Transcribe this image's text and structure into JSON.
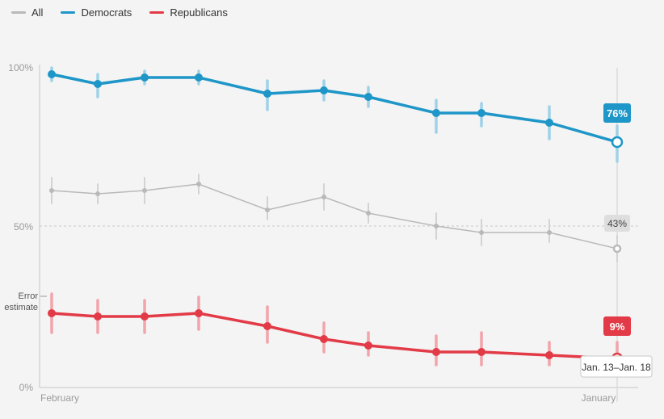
{
  "legend": [
    {
      "label": "All",
      "color": "#b9b9b9"
    },
    {
      "label": "Democrats",
      "color": "#1e96c8"
    },
    {
      "label": "Republicans",
      "color": "#e23b47"
    }
  ],
  "y_ticks": [
    "100%",
    "50%",
    "0%"
  ],
  "x_ticks": [
    "February",
    "January"
  ],
  "error_label": [
    "Error",
    "estimate"
  ],
  "badges": {
    "democrats": "76%",
    "all": "43%",
    "republicans": "9%"
  },
  "date_tooltip": "Jan. 13–Jan. 18",
  "chart_data": {
    "type": "line",
    "title": "",
    "ylim": [
      0,
      100
    ],
    "y_ticks": [
      0,
      50,
      100
    ],
    "x_tick_labels": [
      "February",
      "January"
    ],
    "grid": "dashed line at 50%",
    "legend_position": "top-left",
    "series": [
      {
        "name": "Democrats",
        "color": "#1e96c8",
        "values": [
          97,
          94,
          96,
          96,
          91,
          92,
          90,
          85,
          85,
          82,
          76
        ],
        "error": [
          [
            95,
            99
          ],
          [
            90,
            97
          ],
          [
            94,
            98
          ],
          [
            94,
            98
          ],
          [
            86,
            95
          ],
          [
            89,
            95
          ],
          [
            87,
            93
          ],
          [
            79,
            89
          ],
          [
            81,
            88
          ],
          [
            77,
            87
          ],
          [
            70,
            81
          ]
        ]
      },
      {
        "name": "All",
        "color": "#b9b9b9",
        "values": [
          61,
          60,
          61,
          63,
          55,
          59,
          54,
          50,
          48,
          48,
          43
        ],
        "error": [
          [
            57,
            65
          ],
          [
            57,
            63
          ],
          [
            57,
            65
          ],
          [
            60,
            66
          ],
          [
            52,
            59
          ],
          [
            55,
            63
          ],
          [
            51,
            57
          ],
          [
            46,
            54
          ],
          [
            44,
            52
          ],
          [
            45,
            52
          ],
          [
            39,
            47
          ]
        ]
      },
      {
        "name": "Republicans",
        "color": "#e23b47",
        "values": [
          23,
          22,
          22,
          23,
          19,
          15,
          13,
          11,
          11,
          10,
          9
        ],
        "error": [
          [
            17,
            29
          ],
          [
            17,
            27
          ],
          [
            17,
            27
          ],
          [
            18,
            28
          ],
          [
            14,
            25
          ],
          [
            11,
            20
          ],
          [
            10,
            17
          ],
          [
            7,
            16
          ],
          [
            7,
            17
          ],
          [
            7,
            14
          ],
          [
            6,
            14
          ]
        ]
      }
    ]
  }
}
